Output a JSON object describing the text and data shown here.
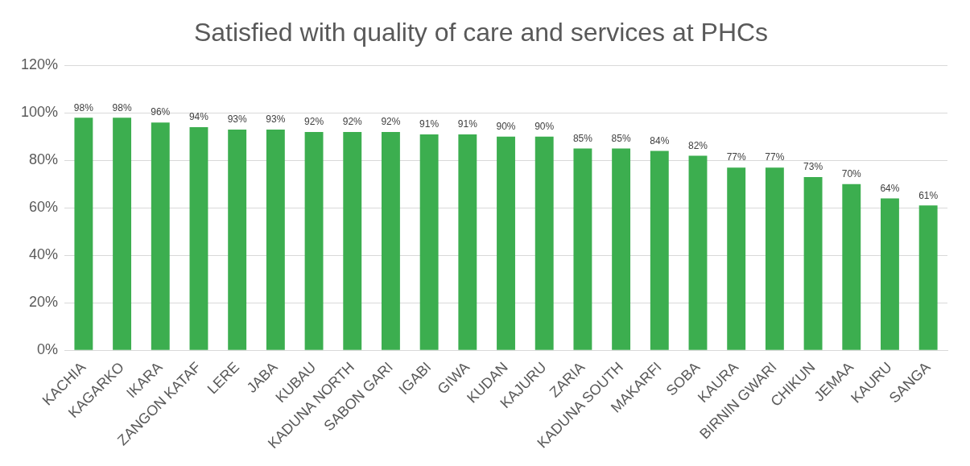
{
  "chart_data": {
    "type": "bar",
    "title": "Satisfied with quality of care and services at PHCs",
    "categories": [
      "KACHIA",
      "KAGARKO",
      "IKARA",
      "ZANGON KATAF",
      "LERE",
      "JABA",
      "KUBAU",
      "KADUNA NORTH",
      "SABON GARI",
      "IGABI",
      "GIWA",
      "KUDAN",
      "KAJURU",
      "ZARIA",
      "KADUNA SOUTH",
      "MAKARFI",
      "SOBA",
      "KAURA",
      "BIRNIN GWARI",
      "CHIKUN",
      "JEMAA",
      "KAURU",
      "SANGA"
    ],
    "values": [
      98,
      98,
      96,
      94,
      93,
      93,
      92,
      92,
      92,
      91,
      91,
      90,
      90,
      85,
      85,
      84,
      82,
      77,
      77,
      73,
      70,
      64,
      61
    ],
    "value_labels": [
      "98%",
      "98%",
      "96%",
      "94%",
      "93%",
      "93%",
      "92%",
      "92%",
      "92%",
      "91%",
      "91%",
      "90%",
      "90%",
      "85%",
      "85%",
      "84%",
      "82%",
      "77%",
      "77%",
      "73%",
      "70%",
      "64%",
      "61%"
    ],
    "color": "#3cae4f",
    "ylim": [
      0,
      120
    ],
    "yticks": [
      {
        "value": 0,
        "label": "0%"
      },
      {
        "value": 20,
        "label": "20%"
      },
      {
        "value": 40,
        "label": "40%"
      },
      {
        "value": 60,
        "label": "60%"
      },
      {
        "value": 80,
        "label": "80%"
      },
      {
        "value": 100,
        "label": "100%"
      },
      {
        "value": 120,
        "label": "120%"
      }
    ],
    "grid": "y",
    "legend": false
  }
}
